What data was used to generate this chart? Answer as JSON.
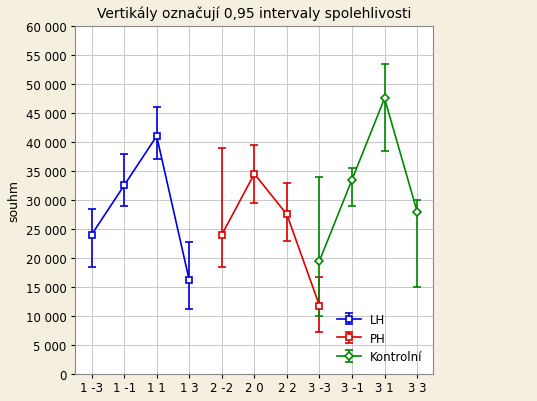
{
  "title": "Vertikály označují 0,95 intervaly spolehlivosti",
  "ylabel": "souhm",
  "background_color": "#f5efe0",
  "plot_bg_color": "#ffffff",
  "grid_color": "#c8c8c8",
  "xlim": [
    -0.5,
    10.5
  ],
  "ylim": [
    0,
    60000
  ],
  "yticks": [
    0,
    5000,
    10000,
    15000,
    20000,
    25000,
    30000,
    35000,
    40000,
    45000,
    50000,
    55000,
    60000
  ],
  "xtick_labels": [
    "1 -3",
    "1 -1",
    "1 1",
    "1 3",
    "2 -2",
    "2 0",
    "2 2",
    "3 -3",
    "3 -1",
    "3 1",
    "3 3"
  ],
  "lh": {
    "color": "#0000dd",
    "xi": [
      0,
      1,
      2,
      3
    ],
    "y": [
      24000,
      32500,
      41000,
      16200
    ],
    "elo": [
      5500,
      3500,
      4000,
      5000
    ],
    "ehi": [
      4500,
      5500,
      5000,
      6500
    ]
  },
  "ph": {
    "color": "#dd0000",
    "xi": [
      4,
      5,
      6,
      7
    ],
    "y": [
      24000,
      34500,
      27500,
      11800
    ],
    "elo": [
      5500,
      5000,
      4500,
      4500
    ],
    "ehi": [
      15000,
      5000,
      5500,
      5000
    ]
  },
  "ko": {
    "color": "#008800",
    "xi": [
      7,
      8,
      9,
      10
    ],
    "y": [
      19500,
      33500,
      47500,
      28000
    ],
    "elo": [
      9500,
      4500,
      9000,
      13000
    ],
    "ehi": [
      14500,
      2000,
      6000,
      2000
    ]
  }
}
